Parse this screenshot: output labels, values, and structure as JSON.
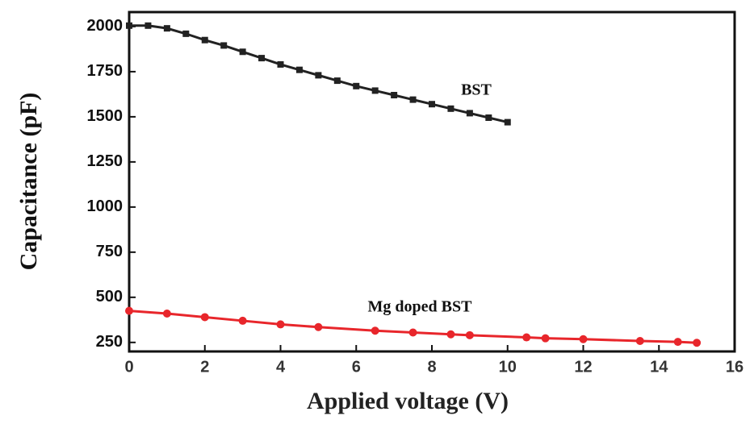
{
  "chart_data": {
    "type": "line",
    "x_label": "Applied voltage (V)",
    "y_label": "Capacitance (pF)",
    "annotations": [
      "BST",
      "Mg doped BST"
    ],
    "xlim": [
      0,
      16
    ],
    "xticks": [
      0,
      2,
      4,
      6,
      8,
      10,
      12,
      14,
      16
    ],
    "ylim": [
      200,
      2080
    ],
    "yticks": [
      250,
      500,
      750,
      1000,
      1250,
      1500,
      1750,
      2000
    ],
    "series": [
      {
        "name": "BST",
        "color": "#222222",
        "marker": "square",
        "x": [
          0,
          0.5,
          1,
          1.5,
          2,
          2.5,
          3,
          3.5,
          4,
          4.5,
          5,
          5.5,
          6,
          6.5,
          7,
          7.5,
          8,
          8.5,
          9,
          9.5,
          10
        ],
        "values": [
          2005,
          2005,
          1990,
          1960,
          1925,
          1895,
          1860,
          1825,
          1790,
          1760,
          1730,
          1700,
          1670,
          1645,
          1620,
          1595,
          1570,
          1545,
          1520,
          1495,
          1470
        ]
      },
      {
        "name": "Mg doped BST",
        "color": "#e8262b",
        "marker": "circle",
        "x": [
          0,
          1,
          2,
          3,
          4,
          5,
          6.5,
          7.5,
          8.5,
          9,
          10.5,
          11,
          12,
          13.5,
          14.5,
          15
        ],
        "values": [
          425,
          410,
          390,
          370,
          350,
          335,
          315,
          305,
          295,
          290,
          278,
          273,
          268,
          258,
          253,
          248
        ]
      }
    ]
  }
}
